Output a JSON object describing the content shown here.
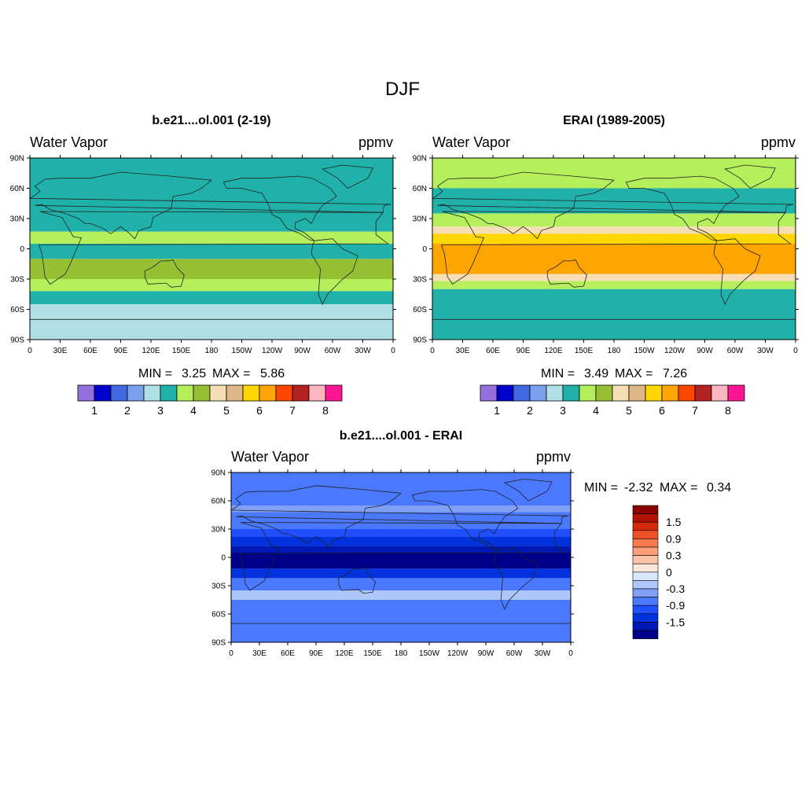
{
  "figure_title": "DJF",
  "chart_data": [
    {
      "type": "heatmap",
      "panel": "model",
      "title": "b.e21....ol.001 (2-19)",
      "left_label": "Water Vapor",
      "units": "ppmv",
      "x_ticks": [
        "0",
        "30E",
        "60E",
        "90E",
        "120E",
        "150E",
        "180",
        "150W",
        "120W",
        "90W",
        "60W",
        "30W",
        "0"
      ],
      "y_ticks": [
        "90N",
        "60N",
        "30N",
        "0",
        "30S",
        "60S",
        "90S"
      ],
      "min_label": "MIN =",
      "min_value": "3.25",
      "max_label": "MAX =",
      "max_value": "5.86",
      "colorbar_labels": [
        "1",
        "2",
        "3",
        "4",
        "5",
        "6",
        "7",
        "8"
      ],
      "zones": [
        {
          "lat_top": 90,
          "lat_bottom": 17,
          "level": 5
        },
        {
          "lat_top": 17,
          "lat_bottom": 5,
          "level": 6
        },
        {
          "lat_top": 5,
          "lat_bottom": -10,
          "level": 5
        },
        {
          "lat_top": -10,
          "lat_bottom": -30,
          "level": 7
        },
        {
          "lat_top": -30,
          "lat_bottom": -42,
          "level": 6
        },
        {
          "lat_top": -42,
          "lat_bottom": -55,
          "level": 5
        },
        {
          "lat_top": -55,
          "lat_bottom": -90,
          "level": 4
        }
      ]
    },
    {
      "type": "heatmap",
      "panel": "obs",
      "title": "ERAI (1989-2005)",
      "left_label": "Water Vapor",
      "units": "ppmv",
      "x_ticks": [
        "0",
        "30E",
        "60E",
        "90E",
        "120E",
        "150E",
        "180",
        "150W",
        "120W",
        "90W",
        "60W",
        "30W",
        "0"
      ],
      "y_ticks": [
        "90N",
        "60N",
        "30N",
        "0",
        "30S",
        "60S",
        "90S"
      ],
      "min_label": "MIN =",
      "min_value": "3.49",
      "max_label": "MAX =",
      "max_value": "7.26",
      "colorbar_labels": [
        "1",
        "2",
        "3",
        "4",
        "5",
        "6",
        "7",
        "8"
      ],
      "zones": [
        {
          "lat_top": 90,
          "lat_bottom": 60,
          "level": 6
        },
        {
          "lat_top": 60,
          "lat_bottom": 35,
          "level": 5
        },
        {
          "lat_top": 35,
          "lat_bottom": 22,
          "level": 6
        },
        {
          "lat_top": 22,
          "lat_bottom": 15,
          "level": 8
        },
        {
          "lat_top": 15,
          "lat_bottom": 5,
          "level": 10
        },
        {
          "lat_top": 5,
          "lat_bottom": -25,
          "level": 11
        },
        {
          "lat_top": -25,
          "lat_bottom": -32,
          "level": 8
        },
        {
          "lat_top": -32,
          "lat_bottom": -40,
          "level": 6
        },
        {
          "lat_top": -40,
          "lat_bottom": -90,
          "level": 5
        }
      ]
    },
    {
      "type": "heatmap",
      "panel": "difference",
      "title": "b.e21....ol.001 - ERAI",
      "left_label": "Water Vapor",
      "units": "ppmv",
      "x_ticks": [
        "0",
        "30E",
        "60E",
        "90E",
        "120E",
        "150E",
        "180",
        "150W",
        "120W",
        "90W",
        "60W",
        "30W",
        "0"
      ],
      "y_ticks": [
        "90N",
        "60N",
        "30N",
        "0",
        "30S",
        "60S",
        "90S"
      ],
      "min_label": "MIN =",
      "min_value": "-2.32",
      "max_label": "MAX =",
      "max_value": "0.34",
      "colorbar_labels": [
        "1.5",
        "0.9",
        "0.3",
        "0",
        "-0.3",
        "-0.9",
        "-1.5"
      ],
      "zones": [
        {
          "lat_top": 90,
          "lat_bottom": 55,
          "level": 4
        },
        {
          "lat_top": 55,
          "lat_bottom": 48,
          "level": 5
        },
        {
          "lat_top": 48,
          "lat_bottom": 30,
          "level": 4
        },
        {
          "lat_top": 30,
          "lat_bottom": 22,
          "level": 3
        },
        {
          "lat_top": 22,
          "lat_bottom": 12,
          "level": 2
        },
        {
          "lat_top": 12,
          "lat_bottom": 5,
          "level": 1
        },
        {
          "lat_top": 5,
          "lat_bottom": -12,
          "level": 0
        },
        {
          "lat_top": -12,
          "lat_bottom": -22,
          "level": 2
        },
        {
          "lat_top": -22,
          "lat_bottom": -35,
          "level": 4
        },
        {
          "lat_top": -35,
          "lat_bottom": -45,
          "level": 6
        },
        {
          "lat_top": -45,
          "lat_bottom": -90,
          "level": 4
        }
      ]
    }
  ],
  "palettes": {
    "main": [
      "#9370db",
      "#0000cd",
      "#4169e1",
      "#7ba0ef",
      "#b0e0e6",
      "#20b2aa",
      "#b5ef5c",
      "#96c034",
      "#f5deb3",
      "#deb887",
      "#ffd700",
      "#ffa500",
      "#ff4500",
      "#b22222",
      "#ffb6c1",
      "#ff1493"
    ],
    "diff": [
      "#00008b",
      "#0019b5",
      "#0033dd",
      "#1f4fff",
      "#4a79ff",
      "#7fa0f5",
      "#aec6fa",
      "#d8e7fd",
      "#fde5d8",
      "#fcc3a8",
      "#fb9e7c",
      "#fb7a4f",
      "#ee5125",
      "#d42b0b",
      "#b21206",
      "#8b0000"
    ]
  }
}
